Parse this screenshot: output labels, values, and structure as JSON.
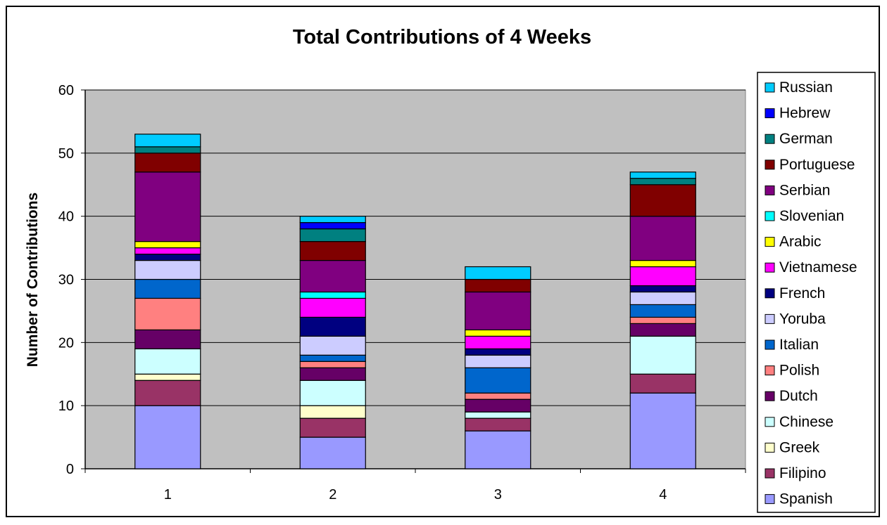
{
  "chart_data": {
    "type": "bar",
    "stacked": true,
    "title": "Total Contributions of 4 Weeks",
    "xlabel": "",
    "ylabel": "Number of Contributions",
    "categories": [
      "1",
      "2",
      "3",
      "4"
    ],
    "ylim": [
      0,
      60
    ],
    "yticks": [
      0,
      10,
      20,
      30,
      40,
      50,
      60
    ],
    "grid": true,
    "legend_position": "right",
    "plot_background": "#c0c0c0",
    "series": [
      {
        "name": "Spanish",
        "color": "#9999ff",
        "values": [
          10,
          5,
          6,
          12
        ]
      },
      {
        "name": "Filipino",
        "color": "#993366",
        "values": [
          4,
          3,
          2,
          3
        ]
      },
      {
        "name": "Greek",
        "color": "#ffffcc",
        "values": [
          1,
          2,
          0,
          0
        ]
      },
      {
        "name": "Chinese",
        "color": "#ccffff",
        "values": [
          4,
          4,
          1,
          6
        ]
      },
      {
        "name": "Dutch",
        "color": "#660066",
        "values": [
          3,
          2,
          2,
          2
        ]
      },
      {
        "name": "Polish",
        "color": "#ff8080",
        "values": [
          5,
          1,
          1,
          1
        ]
      },
      {
        "name": "Italian",
        "color": "#0066cc",
        "values": [
          3,
          1,
          4,
          2
        ]
      },
      {
        "name": "Yoruba",
        "color": "#ccccff",
        "values": [
          3,
          3,
          2,
          2
        ]
      },
      {
        "name": "French",
        "color": "#000080",
        "values": [
          1,
          3,
          1,
          1
        ]
      },
      {
        "name": "Vietnamese",
        "color": "#ff00ff",
        "values": [
          1,
          3,
          2,
          3
        ]
      },
      {
        "name": "Arabic",
        "color": "#ffff00",
        "values": [
          1,
          0,
          1,
          1
        ]
      },
      {
        "name": "Slovenian",
        "color": "#00ffff",
        "values": [
          0,
          1,
          0,
          0
        ]
      },
      {
        "name": "Serbian",
        "color": "#800080",
        "values": [
          11,
          5,
          6,
          7
        ]
      },
      {
        "name": "Portuguese",
        "color": "#800000",
        "values": [
          3,
          3,
          2,
          5
        ]
      },
      {
        "name": "German",
        "color": "#008080",
        "values": [
          1,
          2,
          0,
          1
        ]
      },
      {
        "name": "Hebrew",
        "color": "#0000ff",
        "values": [
          0,
          1,
          0,
          0
        ]
      },
      {
        "name": "Russian",
        "color": "#00ccff",
        "values": [
          2,
          1,
          2,
          1
        ]
      }
    ]
  }
}
